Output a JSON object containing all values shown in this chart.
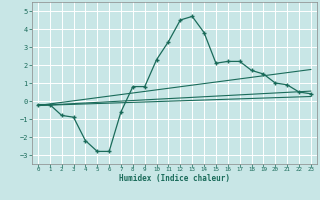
{
  "title": "",
  "xlabel": "Humidex (Indice chaleur)",
  "xlim": [
    -0.5,
    23.5
  ],
  "ylim": [
    -3.5,
    5.5
  ],
  "yticks": [
    -3,
    -2,
    -1,
    0,
    1,
    2,
    3,
    4,
    5
  ],
  "xticks": [
    0,
    1,
    2,
    3,
    4,
    5,
    6,
    7,
    8,
    9,
    10,
    11,
    12,
    13,
    14,
    15,
    16,
    17,
    18,
    19,
    20,
    21,
    22,
    23
  ],
  "bg_color": "#c8e6e6",
  "line_color": "#1a6b5a",
  "grid_color": "#ffffff",
  "main_line_x": [
    0,
    1,
    2,
    3,
    4,
    5,
    6,
    7,
    8,
    9,
    10,
    11,
    12,
    13,
    14,
    15,
    16,
    17,
    18,
    19,
    20,
    21,
    22,
    23
  ],
  "main_line_y": [
    -0.2,
    -0.2,
    -0.8,
    -0.9,
    -2.2,
    -2.8,
    -2.8,
    -0.6,
    0.8,
    0.8,
    2.3,
    3.3,
    4.5,
    4.7,
    3.8,
    2.1,
    2.2,
    2.2,
    1.7,
    1.5,
    1.0,
    0.9,
    0.5,
    0.4
  ],
  "reg_line1_x": [
    0,
    23
  ],
  "reg_line1_y": [
    -0.25,
    1.75
  ],
  "reg_line2_x": [
    0,
    23
  ],
  "reg_line2_y": [
    -0.25,
    0.55
  ],
  "reg_line3_x": [
    0,
    23
  ],
  "reg_line3_y": [
    -0.25,
    0.25
  ]
}
